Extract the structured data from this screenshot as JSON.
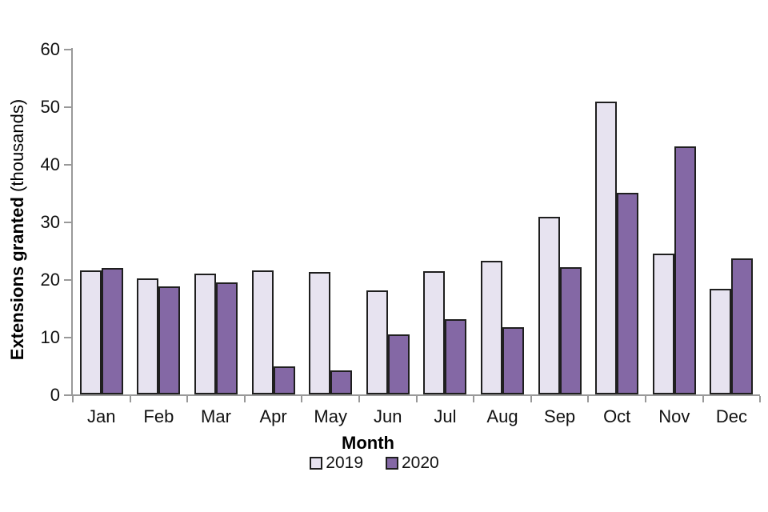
{
  "chart_data": {
    "type": "bar",
    "title": "",
    "xlabel": "Month",
    "ylabel_bold": "Extensions granted",
    "ylabel_regular": " (thousands)",
    "categories": [
      "Jan",
      "Feb",
      "Mar",
      "Apr",
      "May",
      "Jun",
      "Jul",
      "Aug",
      "Sep",
      "Oct",
      "Nov",
      "Dec"
    ],
    "series": [
      {
        "name": "2019",
        "color": "#E7E3F0",
        "values": [
          21.5,
          20.1,
          21.0,
          21.5,
          21.2,
          18.1,
          21.4,
          23.2,
          30.8,
          50.8,
          24.5,
          18.4
        ]
      },
      {
        "name": "2020",
        "color": "#8468A5",
        "values": [
          22.0,
          18.8,
          19.4,
          4.8,
          4.2,
          10.4,
          13.1,
          11.7,
          22.1,
          35.0,
          43.0,
          23.6
        ]
      }
    ],
    "ylim": [
      0,
      60
    ],
    "yticks": [
      0,
      10,
      20,
      30,
      40,
      50,
      60
    ],
    "grid": false,
    "legend_position": "bottom",
    "colors": {
      "axis": "#999999",
      "bar_border": "#1f1f1f",
      "text": "#111111"
    }
  }
}
